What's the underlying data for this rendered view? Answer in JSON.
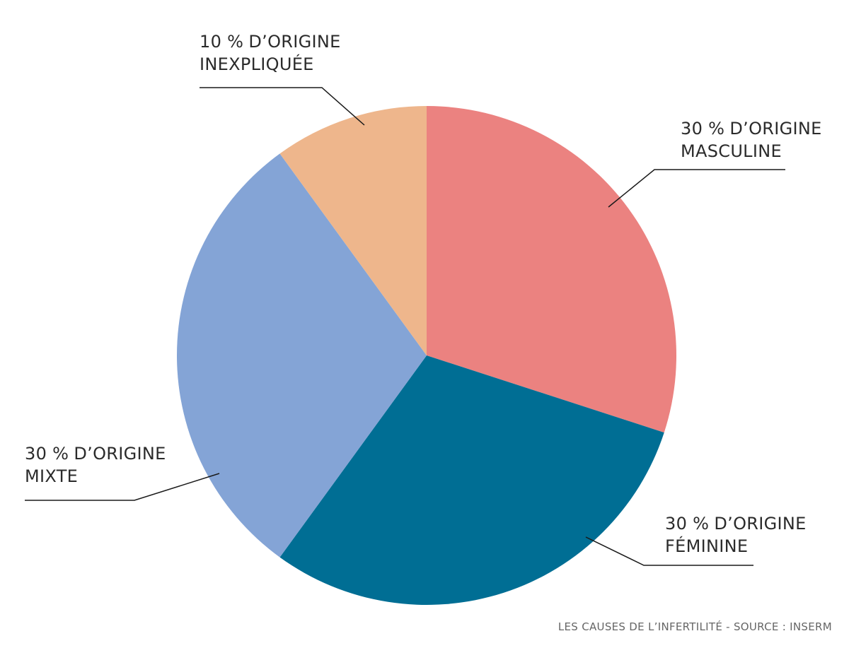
{
  "chart_data": {
    "type": "pie",
    "categories": [
      "D’ORIGINE MASCULINE",
      "D’ORIGINE FÉMININE",
      "D’ORIGINE MIXTE",
      "D’ORIGINE INEXPLIQUÉE"
    ],
    "values": [
      30,
      30,
      30,
      10
    ],
    "value_labels": [
      "30 %",
      "30 %",
      "30 %",
      "10 %"
    ],
    "colors": [
      "#eb8280",
      "#006e94",
      "#84a4d6",
      "#eeb68c"
    ],
    "caption": "LES CAUSES DE L’INFERTILITÉ - SOURCE : INSERM"
  }
}
